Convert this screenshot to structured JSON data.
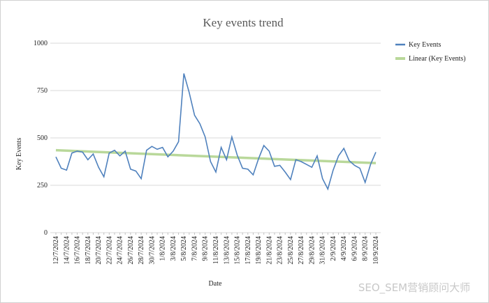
{
  "chart_data": {
    "type": "line",
    "title": "Key events trend",
    "x_label": "Date",
    "y_label": "Key Events",
    "categories": [
      "12/7/2024",
      null,
      "14/7/2024",
      null,
      "16/7/2024",
      null,
      "18/7/2024",
      null,
      "20/7/2024",
      null,
      "22/7/2024",
      null,
      "24/7/2024",
      null,
      "26/7/2024",
      null,
      "28/7/2024",
      null,
      "30/7/2024",
      null,
      "1/8/2024",
      null,
      "3/8/2024",
      null,
      "5/8/2024",
      null,
      "7/8/2024",
      null,
      "9/8/2024",
      null,
      "11/8/2024",
      null,
      "13/8/2024",
      null,
      "15/8/2024",
      null,
      "17/8/2024",
      null,
      "19/8/2024",
      null,
      "21/8/2024",
      null,
      "23/8/2024",
      null,
      "25/8/2024",
      null,
      "27/8/2024",
      null,
      "29/8/2024",
      null,
      "31/8/2024",
      null,
      "2/9/2024",
      null,
      "4/9/2024",
      null,
      "6/9/2024",
      null,
      "8/9/2024",
      null,
      "10/9/2024"
    ],
    "series": [
      {
        "name": "Key Events",
        "color": "#4f81bd",
        "values": [
          400,
          340,
          330,
          420,
          430,
          425,
          385,
          415,
          345,
          295,
          420,
          435,
          405,
          430,
          335,
          325,
          285,
          435,
          455,
          440,
          450,
          400,
          430,
          480,
          840,
          740,
          620,
          575,
          505,
          375,
          320,
          450,
          385,
          505,
          410,
          340,
          335,
          305,
          390,
          460,
          430,
          350,
          355,
          320,
          280,
          385,
          375,
          360,
          345,
          405,
          285,
          230,
          330,
          405,
          445,
          380,
          355,
          340,
          265,
          360,
          425
        ]
      }
    ],
    "trendline": {
      "name": "Linear (Key Events)",
      "color": "#b9d89a",
      "values": [
        435,
        367
      ]
    },
    "ylim": [
      0,
      1000
    ],
    "yticks": [
      0,
      250,
      500,
      750,
      1000
    ],
    "grid": true
  },
  "watermark": "SEO_SEM营销顾问大师"
}
